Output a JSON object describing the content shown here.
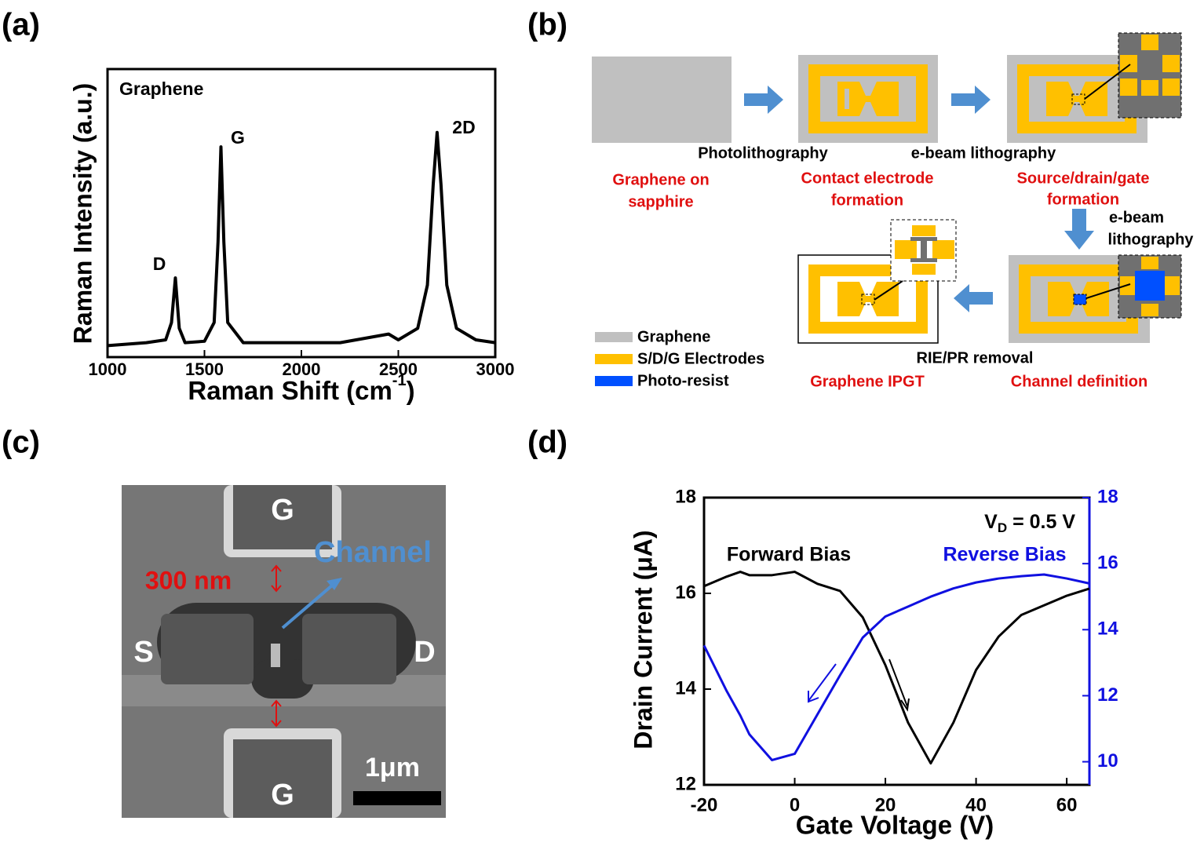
{
  "panel_labels": [
    "(a)",
    "(b)",
    "(c)",
    "(d)"
  ],
  "chart_data": [
    {
      "type": "line",
      "label": "Graphene",
      "peaks": [
        "D",
        "G",
        "2D"
      ],
      "y_label": "Raman Intensity (a.u.)",
      "x_label": [
        "Raman Shift (cm",
        "-1",
        ")"
      ],
      "x": [
        1000,
        1100,
        1200,
        1300,
        1330,
        1350,
        1370,
        1400,
        1500,
        1550,
        1570,
        1585,
        1600,
        1620,
        1700,
        1900,
        2200,
        2450,
        2500,
        2600,
        2650,
        2680,
        2700,
        2720,
        2750,
        2800,
        2900,
        3000
      ],
      "series": [
        {
          "color": "#000000",
          "values": [
            4,
            4.5,
            5,
            6,
            12,
            27.5,
            10,
            5,
            5.5,
            12,
            40,
            73,
            40,
            12,
            5,
            5,
            5,
            8,
            6,
            10,
            25,
            60,
            78,
            60,
            25,
            10,
            6,
            5
          ]
        }
      ],
      "xlim": [
        1000,
        3000
      ],
      "xticks": [
        1000,
        1500,
        2000,
        2500,
        3000
      ],
      "ylim": [
        0,
        100
      ]
    },
    {
      "type": "line",
      "annotation": [
        "V",
        "D",
        " = 0.5 V"
      ],
      "y_label": "Drain Current (μA)",
      "x_label": "Gate Voltage (V)",
      "x": [
        -20,
        -15,
        -12,
        -10,
        -5,
        0,
        5,
        10,
        15,
        20,
        25,
        30,
        35,
        40,
        45,
        50,
        55,
        60,
        65
      ],
      "series": [
        {
          "name": "Forward Bias",
          "color": "#000000",
          "values": [
            16.15,
            16.35,
            16.45,
            16.38,
            16.38,
            16.45,
            16.2,
            16.05,
            15.5,
            14.5,
            13.3,
            12.45,
            13.3,
            14.4,
            15.1,
            15.55,
            15.75,
            15.95,
            16.1
          ]
        },
        {
          "name": "Reverse Bias",
          "color": "#1010e0",
          "axis": "y2",
          "values": [
            13.52,
            12.14,
            11.4,
            10.83,
            10.05,
            10.24,
            11.43,
            12.62,
            13.76,
            14.4,
            14.7,
            15.0,
            15.25,
            15.43,
            15.55,
            15.62,
            15.67,
            15.55,
            15.4
          ]
        }
      ],
      "xlim": [
        -20,
        65
      ],
      "xticks": [
        -20,
        0,
        20,
        40,
        60
      ],
      "ylim": [
        12,
        18
      ],
      "yticks": [
        12,
        14,
        16,
        18
      ],
      "y2lim": [
        9.3,
        18
      ],
      "y2ticks": [
        10,
        12,
        14,
        16,
        18
      ]
    }
  ],
  "diagram": {
    "stages": [
      [
        "Graphene on",
        "sapphire"
      ],
      [
        "Contact electrode",
        "formation"
      ],
      [
        "Source/drain/gate",
        "formation"
      ],
      [
        "Channel definition"
      ],
      [
        "Graphene IPGT"
      ]
    ],
    "processes": [
      "Photolithography",
      "e-beam lithography",
      "e-beam",
      "lithography",
      "RIE/PR removal"
    ],
    "legend": [
      "Graphene",
      "S/D/G Electrodes",
      "Photo-resist"
    ]
  },
  "sem": {
    "labels": [
      "G",
      "G",
      "S",
      "D"
    ],
    "channel": "Channel",
    "gap": "300 nm",
    "scale_bar": "1μm"
  }
}
